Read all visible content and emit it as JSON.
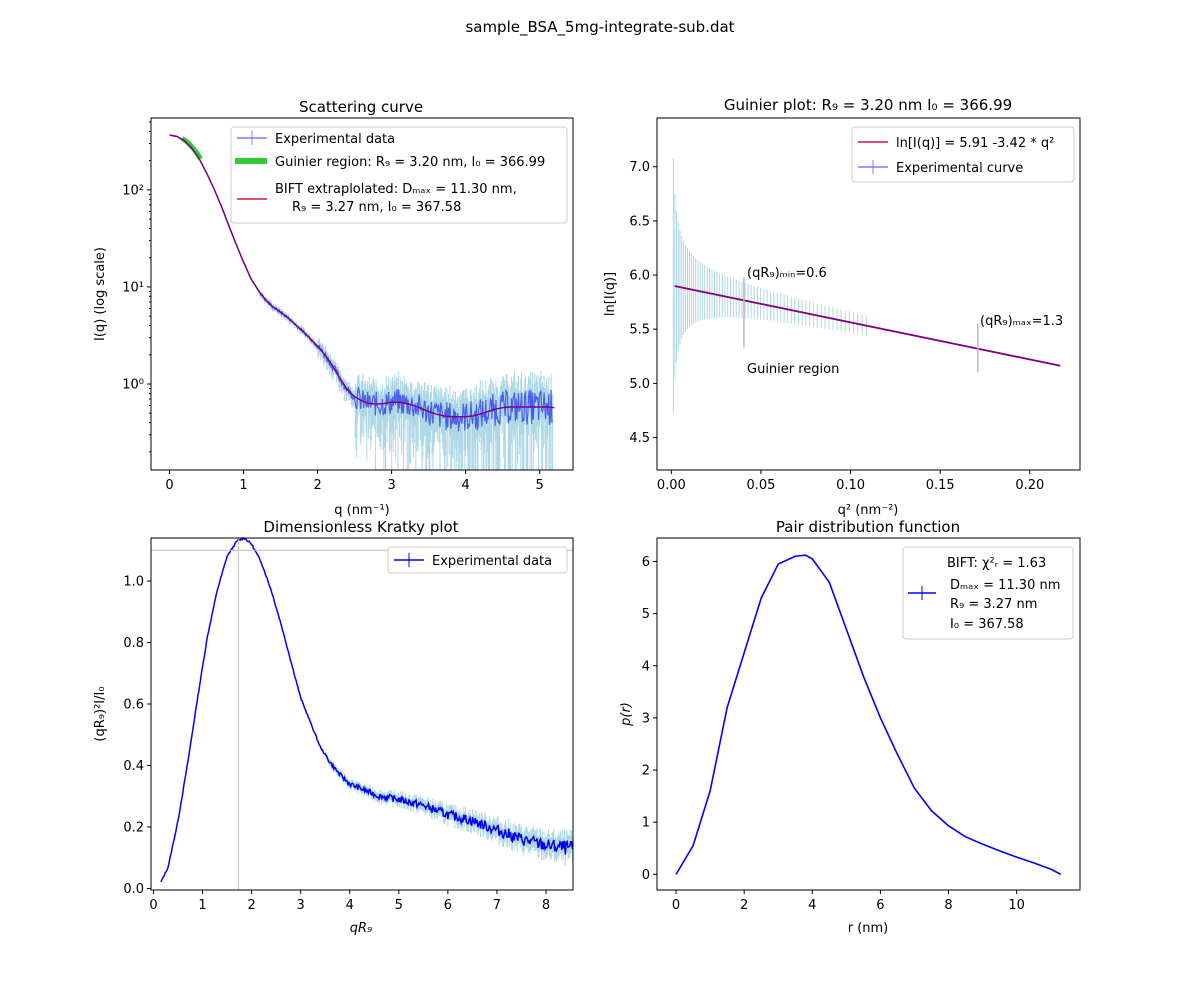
{
  "figure": {
    "suptitle": "sample_BSA_5mg-integrate-sub.dat"
  },
  "colors": {
    "experimental": "#4a5ff0",
    "errorbar": "#add8e6",
    "guinier_region": "#32cd32",
    "fit": "#dc143c",
    "fit_overlap": "#800080",
    "kratky": "#0000ff",
    "guide": "#bbbbbb"
  },
  "chart_data": [
    {
      "id": "scattering",
      "type": "line",
      "title": "Scattering curve",
      "xlabel": "q (nm⁻¹)",
      "ylabel": "I(q) (log scale)",
      "xlim": [
        -0.25,
        5.45
      ],
      "ylim": [
        0.13,
        550
      ],
      "yscale": "log",
      "grid": false,
      "legend_position": "top-right",
      "xticks": [
        0,
        1,
        2,
        3,
        4,
        5
      ],
      "yticks": [
        1,
        10,
        100
      ],
      "ytick_labels": [
        "10⁰",
        "10¹",
        "10²"
      ],
      "legend": [
        "Experimental data",
        "Guinier region: R₉ = 3.20 nm, I₀ = 366.99",
        "BIFT extraplolated: Dₘₐₓ = 11.30 nm,",
        "R₉ = 3.27 nm, I₀ = 367.58"
      ],
      "series": [
        {
          "name": "BIFT extraplolated",
          "x": [
            0,
            0.1,
            0.2,
            0.3,
            0.4,
            0.5,
            0.6,
            0.7,
            0.8,
            0.9,
            1.0,
            1.1,
            1.2,
            1.3,
            1.4,
            1.5,
            1.6,
            1.7,
            1.8,
            1.9,
            2.0,
            2.1,
            2.2,
            2.3,
            2.4,
            2.5,
            2.6,
            2.7,
            2.8,
            2.9,
            3.0,
            3.1,
            3.2,
            3.3,
            3.4,
            3.5,
            3.6,
            3.7,
            3.8,
            3.9,
            4.0,
            4.1,
            4.2,
            4.3,
            4.4,
            4.5,
            4.6,
            4.7,
            4.8,
            4.9,
            5.0,
            5.1,
            5.2
          ],
          "y": [
            367.6,
            355,
            321,
            270,
            210,
            150,
            103,
            68,
            43,
            27.5,
            18,
            12.2,
            9.2,
            7.3,
            6.2,
            5.5,
            4.8,
            4.1,
            3.5,
            2.95,
            2.45,
            2.0,
            1.55,
            1.15,
            0.88,
            0.74,
            0.67,
            0.63,
            0.62,
            0.63,
            0.65,
            0.65,
            0.63,
            0.6,
            0.56,
            0.52,
            0.49,
            0.47,
            0.46,
            0.46,
            0.46,
            0.47,
            0.49,
            0.52,
            0.55,
            0.57,
            0.58,
            0.58,
            0.58,
            0.58,
            0.58,
            0.58,
            0.57
          ]
        },
        {
          "name": "Guinier region",
          "x": [
            0.17,
            0.22,
            0.27,
            0.32,
            0.37,
            0.42
          ],
          "y": [
            340,
            320,
            296,
            268,
            240,
            208
          ]
        }
      ]
    },
    {
      "id": "guinier",
      "type": "line",
      "title": "Guinier plot: R₉ = 3.20 nm I₀ = 366.99",
      "xlabel": "q² (nm⁻²)",
      "ylabel": "ln[I(q)]",
      "xlim": [
        -0.008,
        0.228
      ],
      "ylim": [
        4.2,
        7.45
      ],
      "grid": false,
      "legend_position": "top-right",
      "xticks": [
        0.0,
        0.05,
        0.1,
        0.15,
        0.2
      ],
      "xtick_labels": [
        "0.00",
        "0.05",
        "0.10",
        "0.15",
        "0.20"
      ],
      "yticks": [
        4.5,
        5.0,
        5.5,
        6.0,
        6.5,
        7.0
      ],
      "ytick_labels": [
        "4.5",
        "5.0",
        "5.5",
        "6.0",
        "6.5",
        "7.0"
      ],
      "legend": [
        "ln[I(q)] = 5.91 -3.42 * q²",
        "Experimental curve"
      ],
      "fit": {
        "intercept": 5.905,
        "slope": -3.42,
        "x_range": [
          0.0018,
          0.217
        ]
      },
      "annotations": [
        {
          "text": "(qR₉)ₘᵢₙ=0.6",
          "x": 0.0405,
          "y": 5.98
        },
        {
          "text": "(qR₉)ₘₐₓ=1.3",
          "x": 0.171,
          "y": 5.53
        },
        {
          "text": "Guinier region",
          "x": 0.0405,
          "y": 5.1
        }
      ],
      "guide_lines": [
        {
          "x": 0.0405,
          "y0": 5.33,
          "y1": 5.98
        },
        {
          "x": 0.171,
          "y0": 5.1,
          "y1": 5.55
        }
      ]
    },
    {
      "id": "kratky",
      "type": "line",
      "title": "Dimensionless Kratky plot",
      "xlabel": "qR₉",
      "ylabel": "(qR₉)²I/I₀",
      "xlim": [
        -0.05,
        8.55
      ],
      "ylim": [
        -0.005,
        1.14
      ],
      "grid": false,
      "legend_position": "top-right",
      "xticks": [
        0,
        1,
        2,
        3,
        4,
        5,
        6,
        7,
        8
      ],
      "yticks": [
        0.0,
        0.2,
        0.4,
        0.6,
        0.8,
        1.0
      ],
      "ytick_labels": [
        "0.0",
        "0.2",
        "0.4",
        "0.6",
        "0.8",
        "1.0"
      ],
      "legend": [
        "Experimental data"
      ],
      "guide_lines": {
        "x": 1.73,
        "y": 1.1
      },
      "series": [
        {
          "name": "Experimental data",
          "x": [
            0.15,
            0.3,
            0.5,
            0.7,
            0.9,
            1.1,
            1.3,
            1.5,
            1.7,
            1.85,
            2.0,
            2.2,
            2.4,
            2.6,
            2.8,
            3.0,
            3.2,
            3.4,
            3.6,
            3.8,
            4.0,
            4.3,
            4.6,
            5.0,
            5.5,
            6.0,
            6.5,
            7.0,
            7.5,
            8.0,
            8.5
          ],
          "y": [
            0.02,
            0.07,
            0.22,
            0.41,
            0.62,
            0.82,
            0.97,
            1.08,
            1.13,
            1.14,
            1.12,
            1.06,
            0.97,
            0.86,
            0.74,
            0.62,
            0.54,
            0.46,
            0.41,
            0.37,
            0.34,
            0.32,
            0.3,
            0.29,
            0.27,
            0.24,
            0.22,
            0.19,
            0.16,
            0.14,
            0.13
          ]
        }
      ]
    },
    {
      "id": "pr",
      "type": "line",
      "title": "Pair distribution function",
      "xlabel": "r (nm)",
      "ylabel": "p(r)",
      "xlim": [
        -0.56,
        11.86
      ],
      "ylim": [
        -0.3,
        6.45
      ],
      "grid": false,
      "legend_position": "top-right",
      "xticks": [
        0,
        2,
        4,
        6,
        8,
        10
      ],
      "yticks": [
        0,
        1,
        2,
        3,
        4,
        5,
        6
      ],
      "legend": [
        "BIFT: χ²ᵣ = 1.63",
        "Dₘₐₓ = 11.30 nm",
        "R₉ = 3.27 nm",
        "I₀ = 367.58"
      ],
      "series": [
        {
          "name": "BIFT",
          "x": [
            0,
            0.5,
            1.0,
            1.5,
            2.0,
            2.5,
            3.0,
            3.5,
            3.8,
            4.0,
            4.5,
            5.0,
            5.5,
            6.0,
            6.5,
            7.0,
            7.5,
            8.0,
            8.5,
            9.0,
            9.5,
            10.0,
            10.5,
            11.0,
            11.3
          ],
          "y": [
            0,
            0.55,
            1.6,
            3.2,
            4.25,
            5.3,
            5.95,
            6.1,
            6.12,
            6.05,
            5.6,
            4.7,
            3.8,
            3.0,
            2.3,
            1.65,
            1.22,
            0.93,
            0.72,
            0.58,
            0.45,
            0.33,
            0.22,
            0.1,
            0.0
          ]
        }
      ]
    }
  ]
}
